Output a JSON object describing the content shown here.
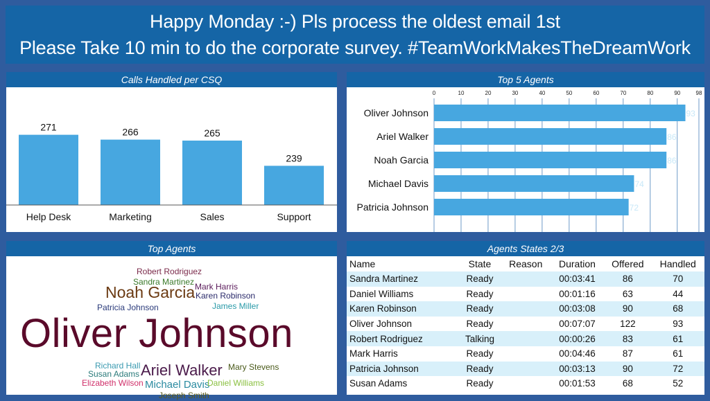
{
  "banner": {
    "line1": "Happy Monday :-) Pls process the oldest email 1st",
    "line2": "Please Take 10 min to do the corporate survey. #TeamWorkMakesTheDreamWork"
  },
  "colors": {
    "panel_header": "#1565a6",
    "background": "#2f5c9e",
    "bar": "#47a7e0",
    "row_alt": "#d8f0fa"
  },
  "calls_panel": {
    "title": "Calls Handled per CSQ"
  },
  "top5_panel": {
    "title": "Top 5 Agents"
  },
  "wordcloud_panel": {
    "title": "Top Agents"
  },
  "states_panel": {
    "title": "Agents States 2/3",
    "columns": [
      "Name",
      "State",
      "Reason",
      "Duration",
      "Offered",
      "Handled"
    ],
    "rows": [
      [
        "Sandra Martinez",
        "Ready",
        "",
        "00:03:41",
        "86",
        "70"
      ],
      [
        "Daniel Williams",
        "Ready",
        "",
        "00:01:16",
        "63",
        "44"
      ],
      [
        "Karen Robinson",
        "Ready",
        "",
        "00:03:08",
        "90",
        "68"
      ],
      [
        "Oliver Johnson",
        "Ready",
        "",
        "00:07:07",
        "122",
        "93"
      ],
      [
        "Robert Rodriguez",
        "Talking",
        "",
        "00:00:26",
        "83",
        "61"
      ],
      [
        "Mark Harris",
        "Ready",
        "",
        "00:04:46",
        "87",
        "61"
      ],
      [
        "Patricia Johnson",
        "Ready",
        "",
        "00:03:13",
        "90",
        "72"
      ],
      [
        "Susan Adams",
        "Ready",
        "",
        "00:01:53",
        "68",
        "52"
      ]
    ]
  },
  "wordcloud": [
    {
      "text": "Robert Rodriguez",
      "color": "#7a2a4a"
    },
    {
      "text": "Sandra Martinez",
      "color": "#3a7a2a"
    },
    {
      "text": "Mark Harris",
      "color": "#5a1a5a"
    },
    {
      "text": "Noah Garcia",
      "color": "#6b3a12"
    },
    {
      "text": "Karen Robinson",
      "color": "#2a2a6a"
    },
    {
      "text": "Patricia Johnson",
      "color": "#2a3a7a"
    },
    {
      "text": "James Miller",
      "color": "#2a9aa8"
    },
    {
      "text": "Oliver Johnson",
      "color": "#5a0a2a"
    },
    {
      "text": "Richard Hall",
      "color": "#3a9ab0"
    },
    {
      "text": "Mary Stevens",
      "color": "#4a5a1a"
    },
    {
      "text": "Susan Adams",
      "color": "#2a7a7a"
    },
    {
      "text": "Ariel Walker",
      "color": "#4a1a4a"
    },
    {
      "text": "Elizabeth Wilson",
      "color": "#d0306a"
    },
    {
      "text": "Michael Davis",
      "color": "#2a8aa0"
    },
    {
      "text": "Daniel Williams",
      "color": "#8ac040"
    },
    {
      "text": "Joseph Smith",
      "color": "#5a5a1a"
    }
  ],
  "chart_data": [
    {
      "type": "bar",
      "title": "Calls Handled per CSQ",
      "categories": [
        "Help Desk",
        "Marketing",
        "Sales",
        "Support"
      ],
      "values": [
        271,
        266,
        265,
        239
      ],
      "ylim": [
        200,
        280
      ]
    },
    {
      "type": "bar",
      "orientation": "horizontal",
      "title": "Top 5 Agents",
      "categories": [
        "Oliver Johnson",
        "Ariel Walker",
        "Noah Garcia",
        "Michael Davis",
        "Patricia Johnson"
      ],
      "values": [
        93,
        86,
        86,
        74,
        72
      ],
      "xticks": [
        0,
        10,
        20,
        30,
        40,
        50,
        60,
        70,
        80,
        90,
        98
      ],
      "xlim": [
        0,
        98
      ]
    }
  ]
}
